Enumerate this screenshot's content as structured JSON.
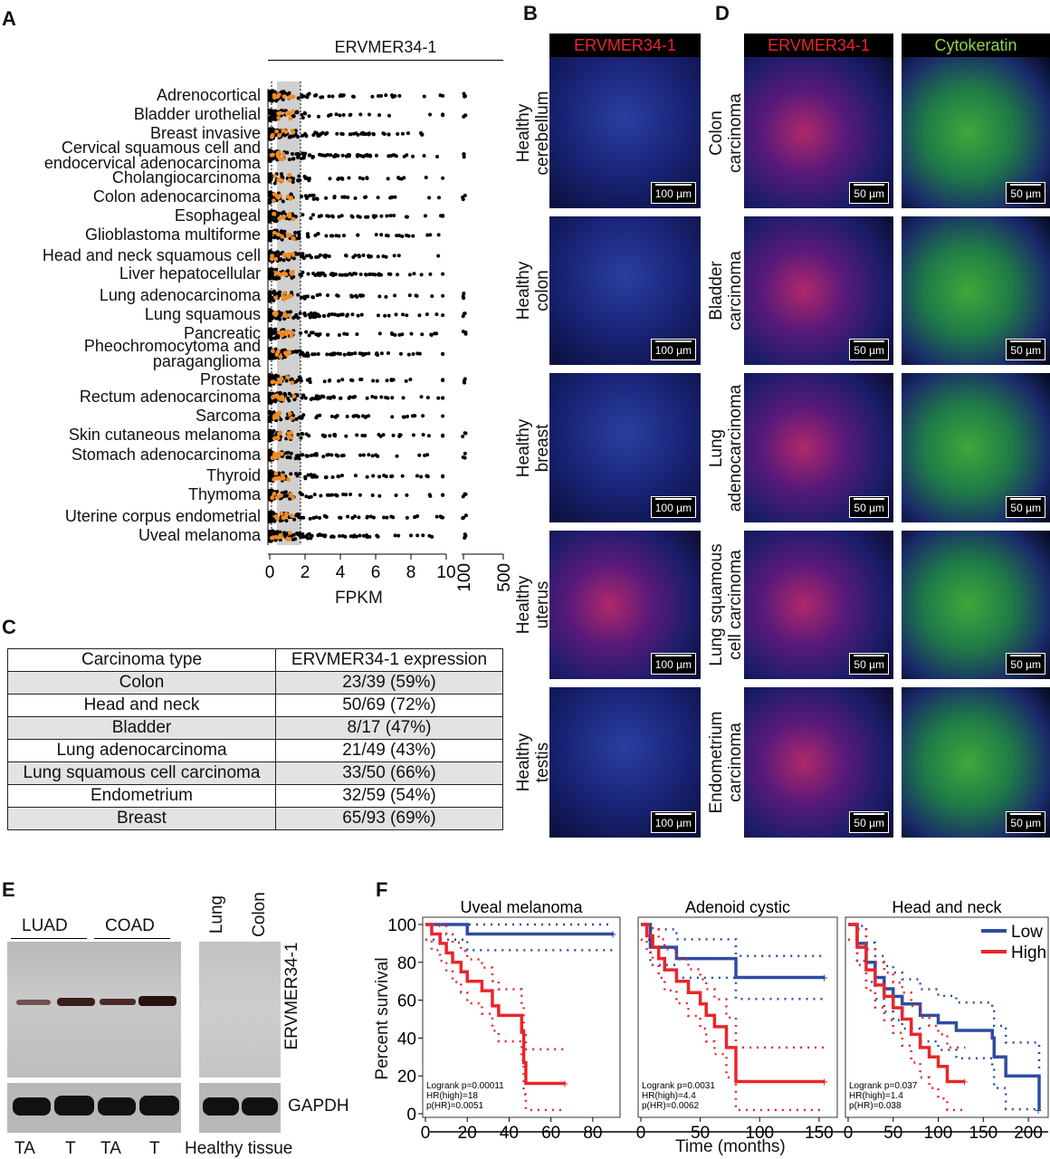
{
  "panels": {
    "A": "A",
    "B": "B",
    "C": "C",
    "D": "D",
    "E": "E",
    "F": "F"
  },
  "panel_a": {
    "title": "ERVMER34-1",
    "xlabel": "FPKM",
    "ticks": [
      "0",
      "2",
      "4",
      "6",
      "8",
      "10"
    ],
    "ticks_break": [
      "100",
      "500"
    ],
    "categories": [
      "Adrenocortical",
      "Bladder urothelial",
      "Breast invasive",
      "Cervical squamous cell and\nendocervical adenocarcinoma",
      "Cholangiocarcinoma",
      "Colon adenocarcinoma",
      "Esophageal",
      "Glioblastoma multiforme",
      "Head and neck squamous cell",
      "Liver hepatocellular",
      "Lung adenocarcinoma",
      "Lung squamous",
      "Pancreatic",
      "Pheochromocytoma and\nparaganglioma",
      "Prostate",
      "Rectum adenocarcinoma",
      "Sarcoma",
      "Skin cutaneous melanoma",
      "Stomach adenocarcinoma",
      "Thyroid",
      "Thymoma",
      "Uterine corpus endometrial",
      "Uveal melanoma"
    ],
    "colors": {
      "tumor": "#000000",
      "normal": "#f08a24",
      "band": "#d0d0d0"
    }
  },
  "panel_b": {
    "header": "ERVMER34-1",
    "rows": [
      "Healthy\ncerebellum",
      "Healthy\ncolon",
      "Healthy\nbreast",
      "Healthy\nuterus",
      "Healthy\ntestis"
    ],
    "scale": "100 µm"
  },
  "panel_c": {
    "headers": [
      "Carcinoma type",
      "ERVMER34-1 expression"
    ],
    "rows": [
      [
        "Colon",
        "23/39 (59%)"
      ],
      [
        "Head and neck",
        "50/69 (72%)"
      ],
      [
        "Bladder",
        "8/17 (47%)"
      ],
      [
        "Lung adenocarcinoma",
        "21/49 (43%)"
      ],
      [
        "Lung squamous cell carcinoma",
        "33/50 (66%)"
      ],
      [
        "Endometrium",
        "32/59 (54%)"
      ],
      [
        "Breast",
        "65/93 (69%)"
      ]
    ]
  },
  "panel_d": {
    "headers": [
      "ERVMER34-1",
      "Cytokeratin"
    ],
    "rows": [
      "Colon\ncarcinoma",
      "Bladder\ncarcinoma",
      "Lung\nadenocarcinoma",
      "Lung squamous\ncell carcinoma",
      "Endometrium\ncarcinoma"
    ],
    "scale": "50 µm"
  },
  "panel_e": {
    "groups": [
      "LUAD",
      "COAD"
    ],
    "lanes": [
      "TA",
      "T",
      "TA",
      "T"
    ],
    "healthy_lanes": [
      "Lung",
      "Colon"
    ],
    "healthy_label": "Healthy tissue",
    "bands": [
      "ERVMER34-1",
      "GAPDH"
    ]
  },
  "chart_data": [
    {
      "type": "line",
      "title": "Uveal melanoma",
      "ylabel": "Percent survival",
      "xlabel": "Time (months)",
      "xlim": [
        0,
        90
      ],
      "ylim": [
        0,
        100
      ],
      "xticks": [
        "0",
        "20",
        "40",
        "60",
        "80"
      ],
      "yticks": [
        "0",
        "20",
        "40",
        "60",
        "80",
        "100"
      ],
      "series": [
        {
          "name": "Low",
          "color": "#2e4da0",
          "steps": [
            [
              0,
              100
            ],
            [
              20,
              95
            ],
            [
              90,
              95
            ]
          ]
        },
        {
          "name": "High",
          "color": "#e8262a",
          "steps": [
            [
              0,
              100
            ],
            [
              3,
              95
            ],
            [
              7,
              90
            ],
            [
              10,
              85
            ],
            [
              13,
              80
            ],
            [
              17,
              75
            ],
            [
              20,
              70
            ],
            [
              27,
              65
            ],
            [
              32,
              57
            ],
            [
              35,
              52
            ],
            [
              46,
              43
            ],
            [
              47,
              27
            ],
            [
              48,
              16
            ],
            [
              67,
              16
            ]
          ]
        }
      ],
      "stats": [
        "Logrank p=0.00011",
        "HR(high)=18",
        "p(HR)=0.0051"
      ]
    },
    {
      "type": "line",
      "title": "Adenoid cystic",
      "xlim": [
        0,
        160
      ],
      "ylim": [
        0,
        100
      ],
      "xticks": [
        "0",
        "50",
        "100",
        "150"
      ],
      "series": [
        {
          "name": "Low",
          "color": "#2e4da0",
          "steps": [
            [
              0,
              100
            ],
            [
              8,
              88
            ],
            [
              30,
              82
            ],
            [
              80,
              72
            ],
            [
              155,
              72
            ]
          ]
        },
        {
          "name": "High",
          "color": "#e8262a",
          "steps": [
            [
              0,
              100
            ],
            [
              5,
              94
            ],
            [
              10,
              88
            ],
            [
              15,
              82
            ],
            [
              20,
              76
            ],
            [
              30,
              70
            ],
            [
              40,
              64
            ],
            [
              50,
              58
            ],
            [
              55,
              52
            ],
            [
              62,
              46
            ],
            [
              72,
              35
            ],
            [
              80,
              17
            ],
            [
              155,
              17
            ]
          ]
        }
      ],
      "stats": [
        "Logrank p=0.0031",
        "HR(high)=4.4",
        "p(HR)=0.0062"
      ]
    },
    {
      "type": "line",
      "title": "Head and neck",
      "xlim": [
        0,
        215
      ],
      "ylim": [
        0,
        100
      ],
      "xticks": [
        "0",
        "50",
        "100",
        "150",
        "200"
      ],
      "legend": [
        "Low",
        "High"
      ],
      "series": [
        {
          "name": "Low",
          "color": "#2e4da0",
          "steps": [
            [
              0,
              100
            ],
            [
              10,
              90
            ],
            [
              20,
              80
            ],
            [
              30,
              72
            ],
            [
              40,
              66
            ],
            [
              50,
              62
            ],
            [
              60,
              58
            ],
            [
              80,
              52
            ],
            [
              100,
              48
            ],
            [
              120,
              44
            ],
            [
              160,
              40
            ],
            [
              162,
              30
            ],
            [
              175,
              20
            ],
            [
              212,
              2
            ]
          ]
        },
        {
          "name": "High",
          "color": "#e8262a",
          "steps": [
            [
              0,
              100
            ],
            [
              10,
              88
            ],
            [
              20,
              76
            ],
            [
              30,
              68
            ],
            [
              40,
              62
            ],
            [
              50,
              56
            ],
            [
              60,
              50
            ],
            [
              70,
              42
            ],
            [
              80,
              35
            ],
            [
              90,
              30
            ],
            [
              100,
              25
            ],
            [
              110,
              17
            ],
            [
              130,
              17
            ]
          ]
        }
      ],
      "stats": [
        "Logrank p=0.037",
        "HR(high)=1.4",
        "p(HR)=0.038"
      ]
    }
  ]
}
